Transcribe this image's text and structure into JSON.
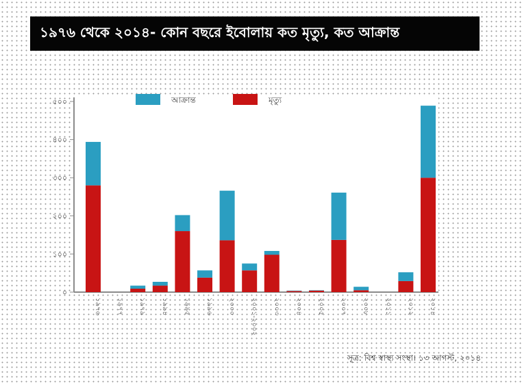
{
  "colors": {
    "infected": "#2b9ec1",
    "deaths": "#c81414",
    "axis": "#8a8a8a"
  },
  "chart_data": {
    "type": "bar",
    "stacked": true,
    "title": "১৯৭৬ থেকে ২০১৪- কোন বছরে ইবোলায় কত মৃত্যু, কত আক্রান্ত",
    "legend_position": "top",
    "ylim": [
      0,
      500
    ],
    "yticks": [
      "০",
      "১০০",
      "২০০",
      "৩০০",
      "৪০০",
      "৫০০"
    ],
    "categories": [
      "১৯৭৬",
      "১৯৭৭",
      "১৯৭৯",
      "১৯৯৪",
      "১৯৯৫",
      "১৯৯৬",
      "২০০০",
      "২০০১-২০০২",
      "২০০৩",
      "২০০৪",
      "২০০৫",
      "২০০৭",
      "২০০৮",
      "২০১১",
      "২০১২",
      "২০১৪"
    ],
    "series": [
      {
        "name": "মৃত্যু",
        "values": [
          280,
          0,
          9,
          17,
          160,
          38,
          136,
          57,
          98,
          3,
          4,
          137,
          5,
          0,
          29,
          300
        ]
      },
      {
        "name": "আক্রান্ত",
        "values": [
          114,
          0,
          8,
          10,
          42,
          19,
          130,
          18,
          10,
          1,
          1,
          124,
          9,
          0,
          23,
          189
        ]
      }
    ]
  },
  "source_text": "সূত্র: বিশ্ব স্বাস্থ্য সংস্থা। ১৩ আগস্ট, ২০১৪"
}
